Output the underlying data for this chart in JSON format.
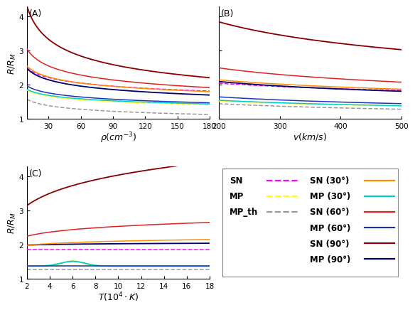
{
  "panel_A": {
    "xlabel": "$\\rho(cm^{-3})$",
    "ylabel": "$R/R_M$",
    "xlim": [
      10,
      180
    ],
    "ylim": [
      1,
      4.3
    ],
    "xticks": [
      30,
      60,
      90,
      120,
      150,
      180
    ],
    "yticks": [
      1,
      2,
      3,
      4
    ]
  },
  "panel_B": {
    "xlabel": "$v(km/s)$",
    "ylabel": "",
    "xlim": [
      200,
      500
    ],
    "ylim": [
      1,
      4.3
    ],
    "xticks": [
      200,
      300,
      400,
      500
    ],
    "yticks": [
      1,
      2,
      3,
      4
    ]
  },
  "panel_C": {
    "xlabel": "$T(10^4 \\cdot K)$",
    "ylabel": "$R/R_M$",
    "xlim": [
      2,
      18
    ],
    "ylim": [
      1,
      4.3
    ],
    "xticks": [
      2,
      4,
      6,
      8,
      10,
      12,
      14,
      16,
      18
    ],
    "yticks": [
      1,
      2,
      3,
      4
    ]
  },
  "colors": {
    "SN_0": "#ff00ff",
    "MP_0": "#ffff00",
    "MPth_0": "#999999",
    "SN_30": "#ff8c00",
    "MP_30": "#00cccc",
    "SN_60": "#dd2222",
    "MP_60": "#2233bb",
    "SN_90": "#880000",
    "MP_90": "#000066"
  },
  "legend_entries": [
    {
      "label": "SN",
      "color": "#ff00ff",
      "ls": "--",
      "col": 0,
      "row": 0
    },
    {
      "label": "MP",
      "color": "#ffff00",
      "ls": "--",
      "col": 0,
      "row": 1
    },
    {
      "label": "MP_th",
      "color": "#999999",
      "ls": "--",
      "col": 0,
      "row": 2
    },
    {
      "label": "SN (30°)",
      "color": "#ff8c00",
      "ls": "-",
      "col": 1,
      "row": 0
    },
    {
      "label": "MP (30°)",
      "color": "#00cccc",
      "ls": "-",
      "col": 1,
      "row": 1
    },
    {
      "label": "SN (60°)",
      "color": "#dd2222",
      "ls": "-",
      "col": 1,
      "row": 2
    },
    {
      "label": "MP (60°)",
      "color": "#2233bb",
      "ls": "-",
      "col": 1,
      "row": 3
    },
    {
      "label": "SN (90°)",
      "color": "#880000",
      "ls": "-",
      "col": 1,
      "row": 4
    },
    {
      "label": "MP (90°)",
      "color": "#000066",
      "ls": "-",
      "col": 1,
      "row": 5
    }
  ]
}
